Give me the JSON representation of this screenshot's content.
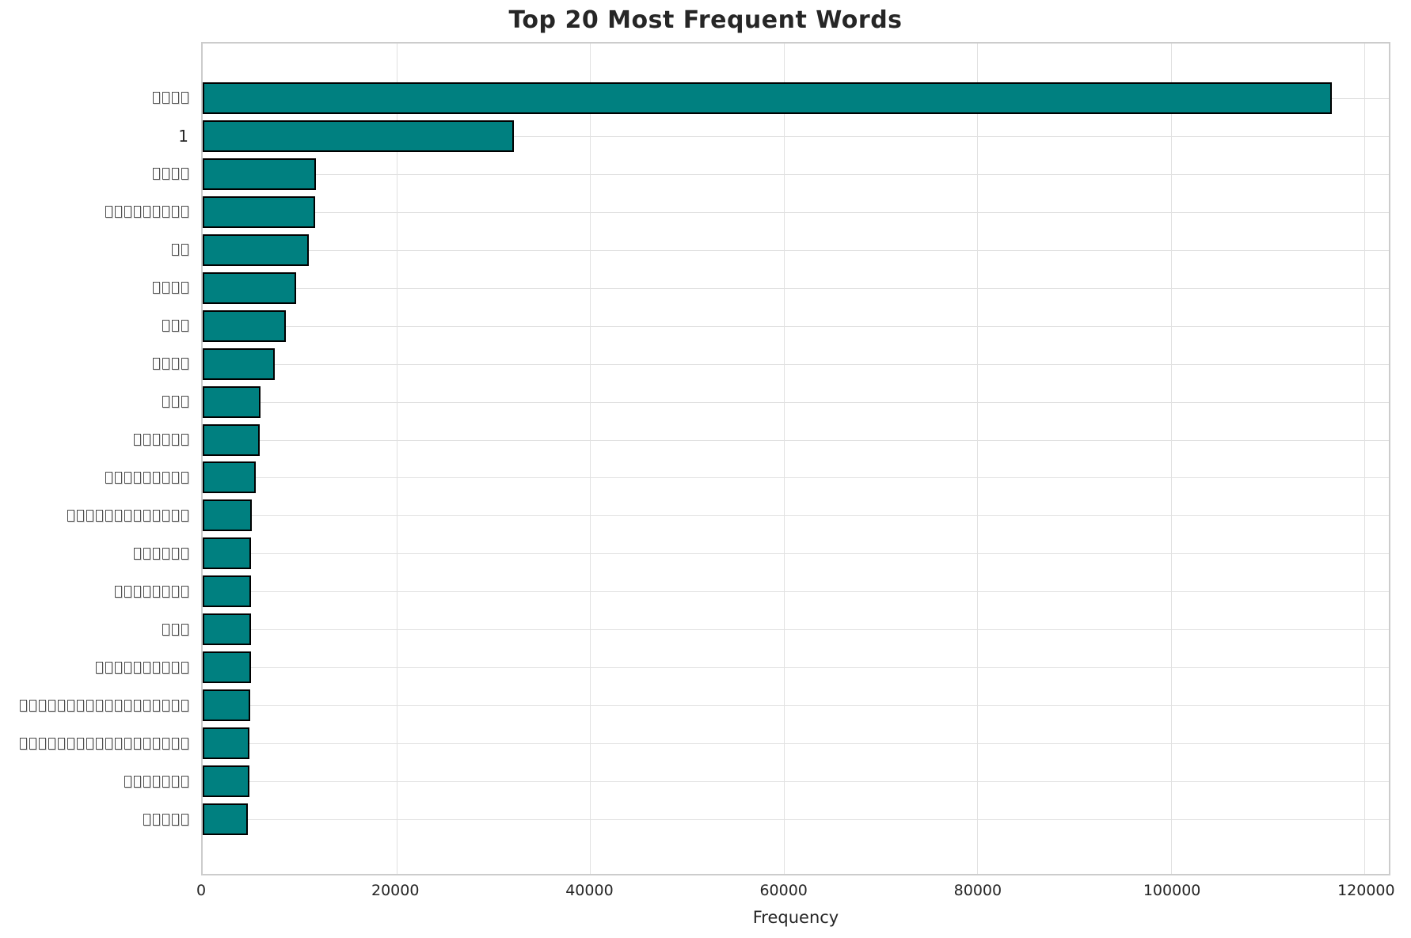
{
  "chart_data": {
    "type": "bar",
    "orientation": "horizontal",
    "title": "Top 20 Most Frequent Words",
    "xlabel": "Frequency",
    "ylabel": "",
    "legend": false,
    "grid": true,
    "x_axis": {
      "min": 0,
      "max": 122500,
      "ticks": [
        0,
        20000,
        40000,
        60000,
        80000,
        100000,
        120000
      ],
      "tick_labels": [
        "0",
        "20000",
        "40000",
        "60000",
        "80000",
        "100000",
        "120000"
      ]
    },
    "y_labels_rendering": "category words render as missing-glyph tofu boxes; box_count = number of boxes shown per label",
    "categories": [
      {
        "kind": "tofu",
        "box_count": 4
      },
      {
        "kind": "text",
        "value": "1"
      },
      {
        "kind": "tofu",
        "box_count": 4
      },
      {
        "kind": "tofu",
        "box_count": 9
      },
      {
        "kind": "tofu",
        "box_count": 2
      },
      {
        "kind": "tofu",
        "box_count": 4
      },
      {
        "kind": "tofu",
        "box_count": 3
      },
      {
        "kind": "tofu",
        "box_count": 4
      },
      {
        "kind": "tofu",
        "box_count": 3
      },
      {
        "kind": "tofu",
        "box_count": 6
      },
      {
        "kind": "tofu",
        "box_count": 9
      },
      {
        "kind": "tofu",
        "box_count": 13
      },
      {
        "kind": "tofu",
        "box_count": 6
      },
      {
        "kind": "tofu",
        "box_count": 8
      },
      {
        "kind": "tofu",
        "box_count": 3
      },
      {
        "kind": "tofu",
        "box_count": 10
      },
      {
        "kind": "tofu",
        "box_count": 18
      },
      {
        "kind": "tofu",
        "box_count": 18
      },
      {
        "kind": "tofu",
        "box_count": 7
      },
      {
        "kind": "tofu",
        "box_count": 5
      }
    ],
    "values": [
      116600,
      32100,
      11700,
      11650,
      10950,
      9650,
      8550,
      7450,
      6000,
      5850,
      5500,
      5100,
      5000,
      4990,
      4970,
      4950,
      4930,
      4850,
      4800,
      4700
    ],
    "colors": {
      "bar_fill": "#008080",
      "bar_edge": "#000000",
      "grid": "#e1e1e1",
      "spine": "#cccccc",
      "text": "#262626",
      "background": "#ffffff"
    }
  }
}
